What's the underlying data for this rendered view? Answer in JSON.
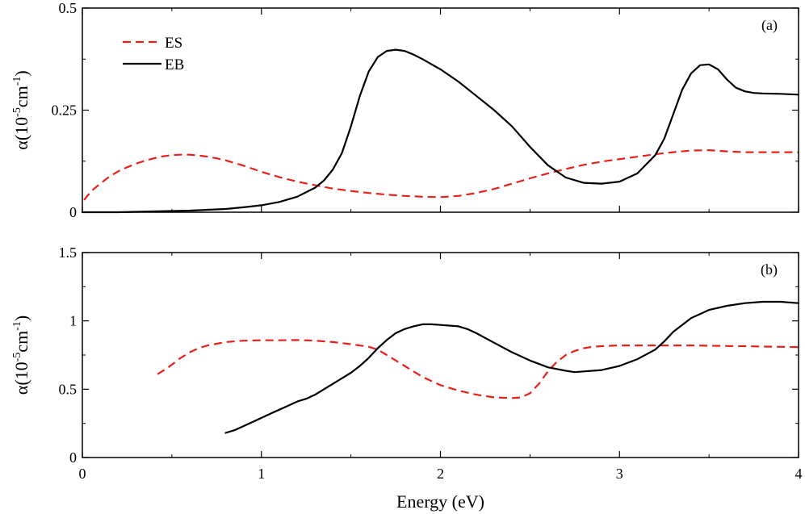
{
  "chart_data": [
    {
      "type": "line",
      "panel_label": "(a)",
      "xlabel": "",
      "ylabel": "α(10",
      "ylabel_sup1": "-5",
      "ylabel_mid": "cm",
      "ylabel_sup2": "-1",
      "ylabel_end": ")",
      "xlim": [
        0,
        4
      ],
      "ylim": [
        0,
        0.5
      ],
      "yticks": [
        0,
        0.25,
        0.5
      ],
      "ytick_labels": [
        "0",
        "0.25",
        "0.5"
      ],
      "xticks": [
        0,
        1,
        2,
        3,
        4
      ],
      "legend": {
        "position": "top-left",
        "entries": [
          "ES",
          "EB"
        ]
      },
      "series": [
        {
          "name": "ES",
          "color": "#e8201a",
          "style": "dashed",
          "x": [
            0.01,
            0.05,
            0.1,
            0.15,
            0.2,
            0.25,
            0.3,
            0.35,
            0.4,
            0.45,
            0.5,
            0.55,
            0.6,
            0.65,
            0.7,
            0.75,
            0.8,
            0.9,
            1.0,
            1.1,
            1.2,
            1.3,
            1.4,
            1.5,
            1.6,
            1.7,
            1.8,
            1.9,
            2.0,
            2.1,
            2.2,
            2.3,
            2.4,
            2.5,
            2.6,
            2.7,
            2.8,
            2.9,
            3.0,
            3.1,
            3.2,
            3.3,
            3.4,
            3.5,
            3.6,
            3.7,
            3.8,
            3.9,
            4.0
          ],
          "values": [
            0.03,
            0.052,
            0.07,
            0.087,
            0.1,
            0.11,
            0.119,
            0.126,
            0.132,
            0.137,
            0.14,
            0.141,
            0.141,
            0.139,
            0.136,
            0.132,
            0.127,
            0.114,
            0.099,
            0.086,
            0.075,
            0.066,
            0.058,
            0.052,
            0.047,
            0.043,
            0.04,
            0.038,
            0.037,
            0.04,
            0.047,
            0.057,
            0.07,
            0.083,
            0.095,
            0.106,
            0.116,
            0.124,
            0.13,
            0.136,
            0.142,
            0.147,
            0.151,
            0.152,
            0.149,
            0.147,
            0.147,
            0.147,
            0.147
          ]
        },
        {
          "name": "EB",
          "color": "#000000",
          "style": "solid",
          "x": [
            0.0,
            0.2,
            0.4,
            0.6,
            0.8,
            0.9,
            1.0,
            1.1,
            1.2,
            1.3,
            1.35,
            1.4,
            1.45,
            1.5,
            1.55,
            1.6,
            1.65,
            1.7,
            1.75,
            1.8,
            1.85,
            1.9,
            2.0,
            2.1,
            2.2,
            2.3,
            2.4,
            2.5,
            2.6,
            2.7,
            2.8,
            2.9,
            3.0,
            3.1,
            3.2,
            3.25,
            3.3,
            3.35,
            3.4,
            3.45,
            3.5,
            3.55,
            3.6,
            3.65,
            3.7,
            3.75,
            3.8,
            3.9,
            4.0
          ],
          "values": [
            0.0,
            0.0,
            0.002,
            0.004,
            0.008,
            0.012,
            0.017,
            0.025,
            0.038,
            0.06,
            0.078,
            0.105,
            0.145,
            0.21,
            0.285,
            0.345,
            0.38,
            0.395,
            0.398,
            0.395,
            0.386,
            0.375,
            0.35,
            0.32,
            0.285,
            0.25,
            0.21,
            0.16,
            0.115,
            0.085,
            0.072,
            0.07,
            0.075,
            0.095,
            0.14,
            0.18,
            0.24,
            0.3,
            0.34,
            0.36,
            0.362,
            0.35,
            0.325,
            0.305,
            0.296,
            0.292,
            0.291,
            0.29,
            0.288
          ]
        }
      ]
    },
    {
      "type": "line",
      "panel_label": "(b)",
      "xlabel": "Energy (eV)",
      "ylabel": "α(10",
      "ylabel_sup1": "-5",
      "ylabel_mid": "cm",
      "ylabel_sup2": "-1",
      "ylabel_end": ")",
      "xlim": [
        0,
        4
      ],
      "ylim": [
        0,
        1.5
      ],
      "yticks": [
        0,
        0.5,
        1,
        1.5
      ],
      "ytick_labels": [
        "0",
        "0.5",
        "1",
        "1.5"
      ],
      "xticks": [
        0,
        1,
        2,
        3,
        4
      ],
      "xtick_labels": [
        "0",
        "1",
        "2",
        "3",
        "4"
      ],
      "series": [
        {
          "name": "ES",
          "color": "#e8201a",
          "style": "dashed",
          "x": [
            0.42,
            0.47,
            0.52,
            0.55,
            0.6,
            0.65,
            0.7,
            0.8,
            0.9,
            1.0,
            1.1,
            1.2,
            1.3,
            1.4,
            1.5,
            1.6,
            1.65,
            1.7,
            1.8,
            1.9,
            2.0,
            2.1,
            2.2,
            2.3,
            2.4,
            2.45,
            2.5,
            2.55,
            2.6,
            2.65,
            2.7,
            2.75,
            2.8,
            2.85,
            2.9,
            3.0,
            3.1,
            3.2,
            3.3,
            3.4,
            3.5,
            3.6,
            3.7,
            3.8,
            3.9,
            4.0
          ],
          "values": [
            0.61,
            0.65,
            0.7,
            0.73,
            0.77,
            0.8,
            0.82,
            0.845,
            0.855,
            0.858,
            0.858,
            0.86,
            0.855,
            0.845,
            0.83,
            0.81,
            0.79,
            0.75,
            0.67,
            0.59,
            0.53,
            0.49,
            0.46,
            0.44,
            0.435,
            0.44,
            0.47,
            0.54,
            0.63,
            0.7,
            0.75,
            0.78,
            0.8,
            0.81,
            0.815,
            0.82,
            0.82,
            0.82,
            0.82,
            0.82,
            0.818,
            0.816,
            0.815,
            0.812,
            0.81,
            0.808
          ]
        },
        {
          "name": "EB",
          "color": "#000000",
          "style": "solid",
          "x": [
            0.8,
            0.85,
            0.9,
            0.95,
            1.0,
            1.05,
            1.1,
            1.15,
            1.2,
            1.25,
            1.3,
            1.35,
            1.4,
            1.45,
            1.5,
            1.55,
            1.6,
            1.65,
            1.7,
            1.75,
            1.8,
            1.85,
            1.9,
            1.95,
            2.0,
            2.1,
            2.15,
            2.2,
            2.3,
            2.4,
            2.5,
            2.6,
            2.7,
            2.75,
            2.8,
            2.9,
            3.0,
            3.1,
            3.2,
            3.25,
            3.3,
            3.35,
            3.4,
            3.5,
            3.6,
            3.7,
            3.8,
            3.9,
            4.0
          ],
          "values": [
            0.18,
            0.2,
            0.23,
            0.26,
            0.29,
            0.32,
            0.35,
            0.38,
            0.41,
            0.43,
            0.46,
            0.5,
            0.54,
            0.58,
            0.62,
            0.67,
            0.73,
            0.8,
            0.86,
            0.91,
            0.94,
            0.96,
            0.975,
            0.975,
            0.97,
            0.96,
            0.94,
            0.91,
            0.84,
            0.77,
            0.71,
            0.66,
            0.635,
            0.625,
            0.63,
            0.64,
            0.67,
            0.72,
            0.79,
            0.85,
            0.92,
            0.97,
            1.02,
            1.08,
            1.11,
            1.13,
            1.14,
            1.14,
            1.13
          ]
        }
      ]
    }
  ]
}
